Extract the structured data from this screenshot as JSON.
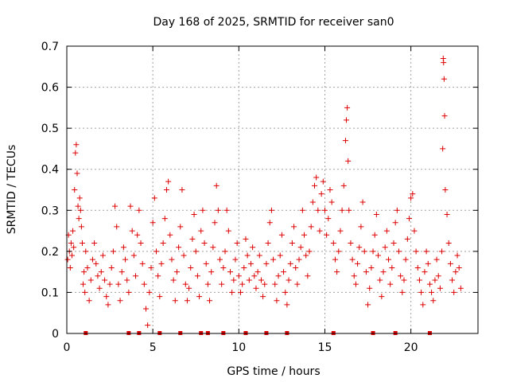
{
  "chart_data": {
    "type": "scatter",
    "title": "Day 168 of 2025, SRMTID for receiver san0",
    "xlabel": "GPS time / hours",
    "ylabel": "SRMTID / TECUs",
    "xlim": [
      0,
      23.9
    ],
    "ylim": [
      0,
      0.7
    ],
    "xticks": [
      0,
      5,
      10,
      15,
      20
    ],
    "xtick_labels": [
      "0",
      "5",
      "10",
      "15",
      "20"
    ],
    "yticks": [
      0,
      0.1,
      0.2,
      0.3,
      0.4,
      0.5,
      0.6,
      0.7
    ],
    "ytick_labels": [
      "0",
      "0.1",
      "0.2",
      "0.3",
      "0.4",
      "0.5",
      "0.6",
      "0.7"
    ],
    "grid": true,
    "marker": "+",
    "color": "#dd0000",
    "zero_markers_x": [
      1.1,
      3.6,
      4.2,
      5.4,
      6.6,
      7.8,
      8.2,
      9.1,
      10.4,
      11.6,
      12.8,
      15.5,
      17.8,
      19.1,
      21.1
    ],
    "points": [
      [
        0.05,
        0.18
      ],
      [
        0.1,
        0.24
      ],
      [
        0.15,
        0.2
      ],
      [
        0.2,
        0.16
      ],
      [
        0.25,
        0.22
      ],
      [
        0.3,
        0.19
      ],
      [
        0.35,
        0.25
      ],
      [
        0.4,
        0.21
      ],
      [
        0.45,
        0.35
      ],
      [
        0.5,
        0.44
      ],
      [
        0.55,
        0.46
      ],
      [
        0.6,
        0.39
      ],
      [
        0.65,
        0.31
      ],
      [
        0.7,
        0.28
      ],
      [
        0.75,
        0.33
      ],
      [
        0.8,
        0.3
      ],
      [
        0.85,
        0.26
      ],
      [
        0.9,
        0.22
      ],
      [
        0.95,
        0.12
      ],
      [
        1.0,
        0.15
      ],
      [
        1.05,
        0.1
      ],
      [
        1.1,
        0.2
      ],
      [
        1.2,
        0.16
      ],
      [
        1.3,
        0.08
      ],
      [
        1.4,
        0.13
      ],
      [
        1.5,
        0.18
      ],
      [
        1.6,
        0.22
      ],
      [
        1.7,
        0.17
      ],
      [
        1.8,
        0.14
      ],
      [
        1.9,
        0.11
      ],
      [
        2.0,
        0.15
      ],
      [
        2.1,
        0.19
      ],
      [
        2.2,
        0.13
      ],
      [
        2.3,
        0.09
      ],
      [
        2.4,
        0.07
      ],
      [
        2.5,
        0.12
      ],
      [
        2.6,
        0.16
      ],
      [
        2.7,
        0.2
      ],
      [
        2.8,
        0.31
      ],
      [
        2.9,
        0.26
      ],
      [
        3.0,
        0.12
      ],
      [
        3.1,
        0.08
      ],
      [
        3.2,
        0.15
      ],
      [
        3.3,
        0.21
      ],
      [
        3.4,
        0.18
      ],
      [
        3.5,
        0.13
      ],
      [
        3.6,
        0.1
      ],
      [
        3.7,
        0.31
      ],
      [
        3.8,
        0.25
      ],
      [
        3.9,
        0.19
      ],
      [
        4.0,
        0.14
      ],
      [
        4.1,
        0.24
      ],
      [
        4.2,
        0.3
      ],
      [
        4.3,
        0.22
      ],
      [
        4.4,
        0.17
      ],
      [
        4.5,
        0.12
      ],
      [
        4.6,
        0.06
      ],
      [
        4.7,
        0.02
      ],
      [
        4.8,
        0.1
      ],
      [
        4.9,
        0.16
      ],
      [
        5.0,
        0.27
      ],
      [
        5.1,
        0.33
      ],
      [
        5.2,
        0.2
      ],
      [
        5.3,
        0.14
      ],
      [
        5.4,
        0.09
      ],
      [
        5.5,
        0.17
      ],
      [
        5.6,
        0.22
      ],
      [
        5.7,
        0.28
      ],
      [
        5.8,
        0.35
      ],
      [
        5.9,
        0.37
      ],
      [
        6.0,
        0.24
      ],
      [
        6.1,
        0.18
      ],
      [
        6.2,
        0.13
      ],
      [
        6.3,
        0.08
      ],
      [
        6.4,
        0.15
      ],
      [
        6.5,
        0.21
      ],
      [
        6.6,
        0.26
      ],
      [
        6.7,
        0.35
      ],
      [
        6.8,
        0.19
      ],
      [
        6.9,
        0.12
      ],
      [
        7.0,
        0.08
      ],
      [
        7.1,
        0.11
      ],
      [
        7.2,
        0.16
      ],
      [
        7.3,
        0.23
      ],
      [
        7.4,
        0.29
      ],
      [
        7.5,
        0.2
      ],
      [
        7.6,
        0.14
      ],
      [
        7.7,
        0.09
      ],
      [
        7.8,
        0.25
      ],
      [
        7.9,
        0.3
      ],
      [
        8.0,
        0.22
      ],
      [
        8.1,
        0.17
      ],
      [
        8.2,
        0.12
      ],
      [
        8.3,
        0.08
      ],
      [
        8.4,
        0.15
      ],
      [
        8.5,
        0.21
      ],
      [
        8.6,
        0.27
      ],
      [
        8.7,
        0.36
      ],
      [
        8.8,
        0.3
      ],
      [
        8.9,
        0.18
      ],
      [
        9.0,
        0.12
      ],
      [
        9.1,
        0.16
      ],
      [
        9.2,
        0.2
      ],
      [
        9.3,
        0.3
      ],
      [
        9.4,
        0.25
      ],
      [
        9.5,
        0.15
      ],
      [
        9.6,
        0.1
      ],
      [
        9.7,
        0.13
      ],
      [
        9.8,
        0.18
      ],
      [
        9.9,
        0.22
      ],
      [
        10.0,
        0.14
      ],
      [
        10.1,
        0.1
      ],
      [
        10.2,
        0.12
      ],
      [
        10.3,
        0.16
      ],
      [
        10.4,
        0.23
      ],
      [
        10.5,
        0.19
      ],
      [
        10.6,
        0.13
      ],
      [
        10.7,
        0.17
      ],
      [
        10.8,
        0.21
      ],
      [
        10.9,
        0.14
      ],
      [
        11.0,
        0.11
      ],
      [
        11.1,
        0.15
      ],
      [
        11.2,
        0.19
      ],
      [
        11.3,
        0.13
      ],
      [
        11.4,
        0.09
      ],
      [
        11.5,
        0.12
      ],
      [
        11.6,
        0.17
      ],
      [
        11.7,
        0.22
      ],
      [
        11.8,
        0.27
      ],
      [
        11.9,
        0.3
      ],
      [
        12.0,
        0.18
      ],
      [
        12.1,
        0.12
      ],
      [
        12.2,
        0.08
      ],
      [
        12.3,
        0.14
      ],
      [
        12.4,
        0.19
      ],
      [
        12.5,
        0.24
      ],
      [
        12.6,
        0.15
      ],
      [
        12.7,
        0.1
      ],
      [
        12.8,
        0.07
      ],
      [
        12.9,
        0.13
      ],
      [
        13.0,
        0.17
      ],
      [
        13.1,
        0.22
      ],
      [
        13.2,
        0.26
      ],
      [
        13.3,
        0.16
      ],
      [
        13.4,
        0.12
      ],
      [
        13.5,
        0.18
      ],
      [
        13.6,
        0.21
      ],
      [
        13.7,
        0.3
      ],
      [
        13.8,
        0.24
      ],
      [
        13.9,
        0.19
      ],
      [
        14.0,
        0.14
      ],
      [
        14.1,
        0.2
      ],
      [
        14.2,
        0.26
      ],
      [
        14.3,
        0.32
      ],
      [
        14.4,
        0.36
      ],
      [
        14.5,
        0.38
      ],
      [
        14.6,
        0.3
      ],
      [
        14.7,
        0.25
      ],
      [
        14.8,
        0.34
      ],
      [
        14.9,
        0.37
      ],
      [
        15.0,
        0.3
      ],
      [
        15.1,
        0.24
      ],
      [
        15.2,
        0.28
      ],
      [
        15.3,
        0.35
      ],
      [
        15.4,
        0.32
      ],
      [
        15.5,
        0.22
      ],
      [
        15.6,
        0.18
      ],
      [
        15.7,
        0.15
      ],
      [
        15.8,
        0.2
      ],
      [
        15.9,
        0.25
      ],
      [
        16.0,
        0.3
      ],
      [
        16.1,
        0.36
      ],
      [
        16.2,
        0.47
      ],
      [
        16.25,
        0.52
      ],
      [
        16.3,
        0.55
      ],
      [
        16.35,
        0.42
      ],
      [
        16.4,
        0.3
      ],
      [
        16.5,
        0.22
      ],
      [
        16.6,
        0.18
      ],
      [
        16.7,
        0.14
      ],
      [
        16.8,
        0.12
      ],
      [
        16.9,
        0.17
      ],
      [
        17.0,
        0.21
      ],
      [
        17.1,
        0.26
      ],
      [
        17.2,
        0.32
      ],
      [
        17.3,
        0.2
      ],
      [
        17.4,
        0.15
      ],
      [
        17.5,
        0.07
      ],
      [
        17.6,
        0.11
      ],
      [
        17.7,
        0.16
      ],
      [
        17.8,
        0.2
      ],
      [
        17.9,
        0.24
      ],
      [
        18.0,
        0.29
      ],
      [
        18.1,
        0.19
      ],
      [
        18.2,
        0.13
      ],
      [
        18.3,
        0.09
      ],
      [
        18.4,
        0.15
      ],
      [
        18.5,
        0.21
      ],
      [
        18.6,
        0.25
      ],
      [
        18.7,
        0.18
      ],
      [
        18.8,
        0.12
      ],
      [
        18.9,
        0.16
      ],
      [
        19.0,
        0.22
      ],
      [
        19.1,
        0.27
      ],
      [
        19.2,
        0.3
      ],
      [
        19.3,
        0.2
      ],
      [
        19.4,
        0.14
      ],
      [
        19.5,
        0.1
      ],
      [
        19.6,
        0.13
      ],
      [
        19.7,
        0.18
      ],
      [
        19.8,
        0.23
      ],
      [
        19.9,
        0.28
      ],
      [
        20.0,
        0.33
      ],
      [
        20.1,
        0.34
      ],
      [
        20.2,
        0.25
      ],
      [
        20.3,
        0.2
      ],
      [
        20.4,
        0.16
      ],
      [
        20.5,
        0.13
      ],
      [
        20.6,
        0.1
      ],
      [
        20.7,
        0.07
      ],
      [
        20.8,
        0.15
      ],
      [
        20.9,
        0.2
      ],
      [
        21.0,
        0.17
      ],
      [
        21.1,
        0.12
      ],
      [
        21.2,
        0.1
      ],
      [
        21.3,
        0.08
      ],
      [
        21.4,
        0.13
      ],
      [
        21.5,
        0.18
      ],
      [
        21.6,
        0.14
      ],
      [
        21.7,
        0.11
      ],
      [
        21.8,
        0.2
      ],
      [
        21.85,
        0.45
      ],
      [
        21.88,
        0.67
      ],
      [
        21.9,
        0.66
      ],
      [
        21.93,
        0.62
      ],
      [
        21.96,
        0.53
      ],
      [
        22.0,
        0.35
      ],
      [
        22.1,
        0.29
      ],
      [
        22.2,
        0.22
      ],
      [
        22.3,
        0.17
      ],
      [
        22.4,
        0.13
      ],
      [
        22.5,
        0.1
      ],
      [
        22.6,
        0.15
      ],
      [
        22.7,
        0.19
      ],
      [
        22.8,
        0.16
      ],
      [
        22.9,
        0.11
      ]
    ]
  }
}
